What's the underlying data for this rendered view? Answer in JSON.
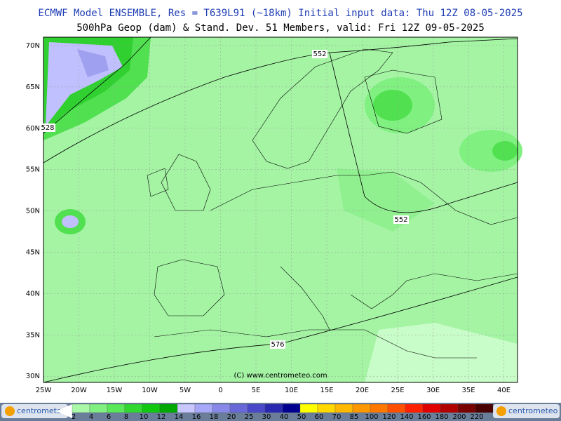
{
  "header": {
    "line1": "ECMWF Model ENSEMBLE, Res = T639L91 (~18km)  Initial input data: Thu 12Z 08-05-2025",
    "line2": "500hPa Geop (dam) & Stand. Dev.   51 Members, valid: Fri 12Z 09-05-2025"
  },
  "axes": {
    "lat_labels": [
      "70N",
      "65N",
      "60N",
      "55N",
      "50N",
      "45N",
      "40N",
      "35N",
      "30N"
    ],
    "lon_labels": [
      "25W",
      "20W",
      "15W",
      "10W",
      "5W",
      "0",
      "5E",
      "10E",
      "15E",
      "20E",
      "25E",
      "30E",
      "35E",
      "40E"
    ]
  },
  "contour_labels": [
    "552",
    "552",
    "528",
    "576"
  ],
  "copyright": "(C) www.centrometeo.com",
  "logos": [
    "centrometeo",
    "centrometeo"
  ],
  "legend": [
    {
      "label": "2",
      "color": "#a8f8a8"
    },
    {
      "label": "4",
      "color": "#80f080"
    },
    {
      "label": "6",
      "color": "#58e858"
    },
    {
      "label": "8",
      "color": "#30d830"
    },
    {
      "label": "10",
      "color": "#10c810"
    },
    {
      "label": "12",
      "color": "#00a800"
    },
    {
      "label": "14",
      "color": "#c8c8ff"
    },
    {
      "label": "16",
      "color": "#a8a8f8"
    },
    {
      "label": "18",
      "color": "#8888e8"
    },
    {
      "label": "20",
      "color": "#6868d8"
    },
    {
      "label": "25",
      "color": "#4848c8"
    },
    {
      "label": "30",
      "color": "#2828b0"
    },
    {
      "label": "40",
      "color": "#000090"
    },
    {
      "label": "50",
      "color": "#ffff00"
    },
    {
      "label": "60",
      "color": "#ffd800"
    },
    {
      "label": "70",
      "color": "#ffb800"
    },
    {
      "label": "85",
      "color": "#ff9800"
    },
    {
      "label": "100",
      "color": "#ff7800"
    },
    {
      "label": "120",
      "color": "#ff5000"
    },
    {
      "label": "140",
      "color": "#ff2000"
    },
    {
      "label": "160",
      "color": "#e00000"
    },
    {
      "label": "180",
      "color": "#b00000"
    },
    {
      "label": "200",
      "color": "#780000"
    },
    {
      "label": "220",
      "color": "#480000"
    }
  ]
}
